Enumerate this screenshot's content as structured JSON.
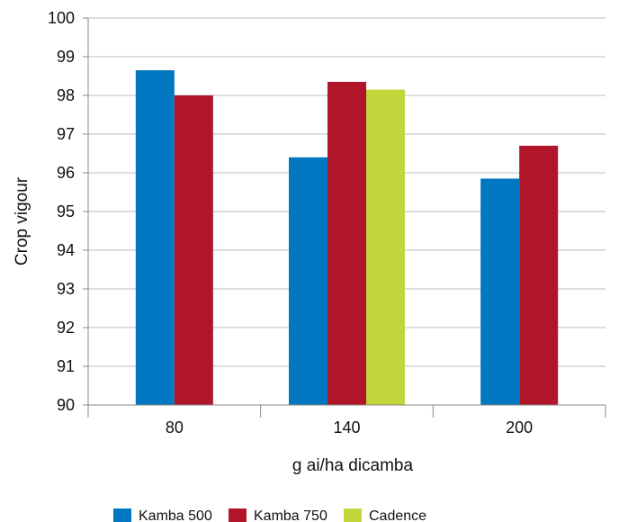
{
  "chart_data": {
    "type": "bar",
    "title": "",
    "xlabel": "g ai/ha dicamba",
    "ylabel": "Crop vigour",
    "categories": [
      "80",
      "140",
      "200"
    ],
    "ylim": [
      90,
      100
    ],
    "yticks": [
      "90",
      "91",
      "92",
      "93",
      "94",
      "95",
      "96",
      "97",
      "98",
      "99",
      "100"
    ],
    "grid": true,
    "legend_position": "bottom",
    "series": [
      {
        "name": "Kamba 500",
        "color": "#0077c0",
        "values": [
          98.65,
          96.4,
          95.85
        ]
      },
      {
        "name": "Kamba 750",
        "color": "#b0152a",
        "values": [
          98.0,
          98.35,
          96.7
        ]
      },
      {
        "name": "Cadence",
        "color": "#c2d53a",
        "values": [
          null,
          98.15,
          null
        ]
      }
    ]
  }
}
